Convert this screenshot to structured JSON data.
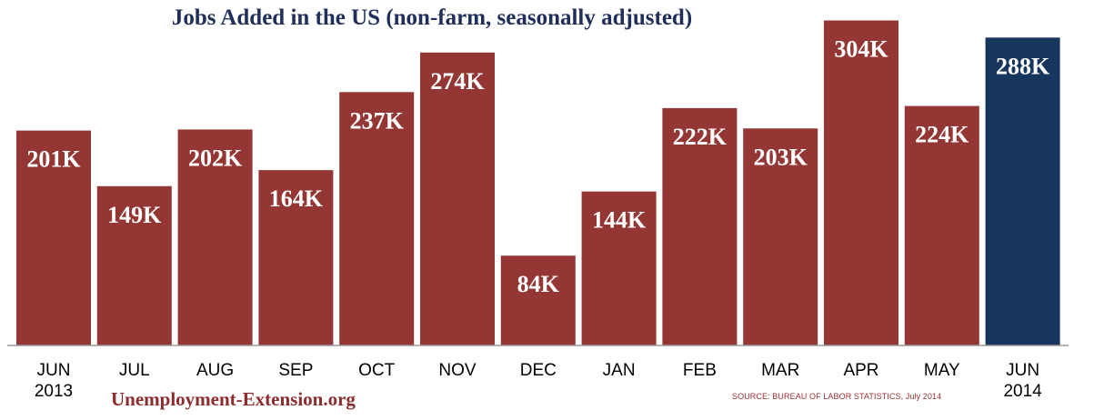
{
  "site": "Unemployment-Extension.org",
  "source": "SOURCE: BUREAU OF LABOR STATISTICS, July 2014",
  "chart_data": {
    "type": "bar",
    "title": "Jobs Added in the US (non-farm, seasonally adjusted)",
    "xlabel": "",
    "ylabel": "",
    "ylim": [
      0,
      320
    ],
    "grid": false,
    "legend": "none",
    "categories": [
      [
        "JUN",
        "2013"
      ],
      [
        "JUL"
      ],
      [
        "AUG"
      ],
      [
        "SEP"
      ],
      [
        "OCT"
      ],
      [
        "NOV"
      ],
      [
        "DEC"
      ],
      [
        "JAN"
      ],
      [
        "FEB"
      ],
      [
        "MAR"
      ],
      [
        "APR"
      ],
      [
        "MAY"
      ],
      [
        "JUN",
        "2014"
      ]
    ],
    "values": [
      201,
      149,
      202,
      164,
      237,
      274,
      84,
      144,
      222,
      203,
      304,
      224,
      288
    ],
    "data_labels": [
      "201K",
      "149K",
      "202K",
      "164K",
      "237K",
      "274K",
      "84K",
      "144K",
      "222K",
      "203K",
      "304K",
      "224K",
      "288K"
    ],
    "colors": {
      "bar": "#943634",
      "highlight_bar": "#17365d",
      "highlight_index": 12,
      "label_text": "#ffffff",
      "title_text": "#1f2f5a",
      "axis": "#9a9a9a"
    }
  }
}
